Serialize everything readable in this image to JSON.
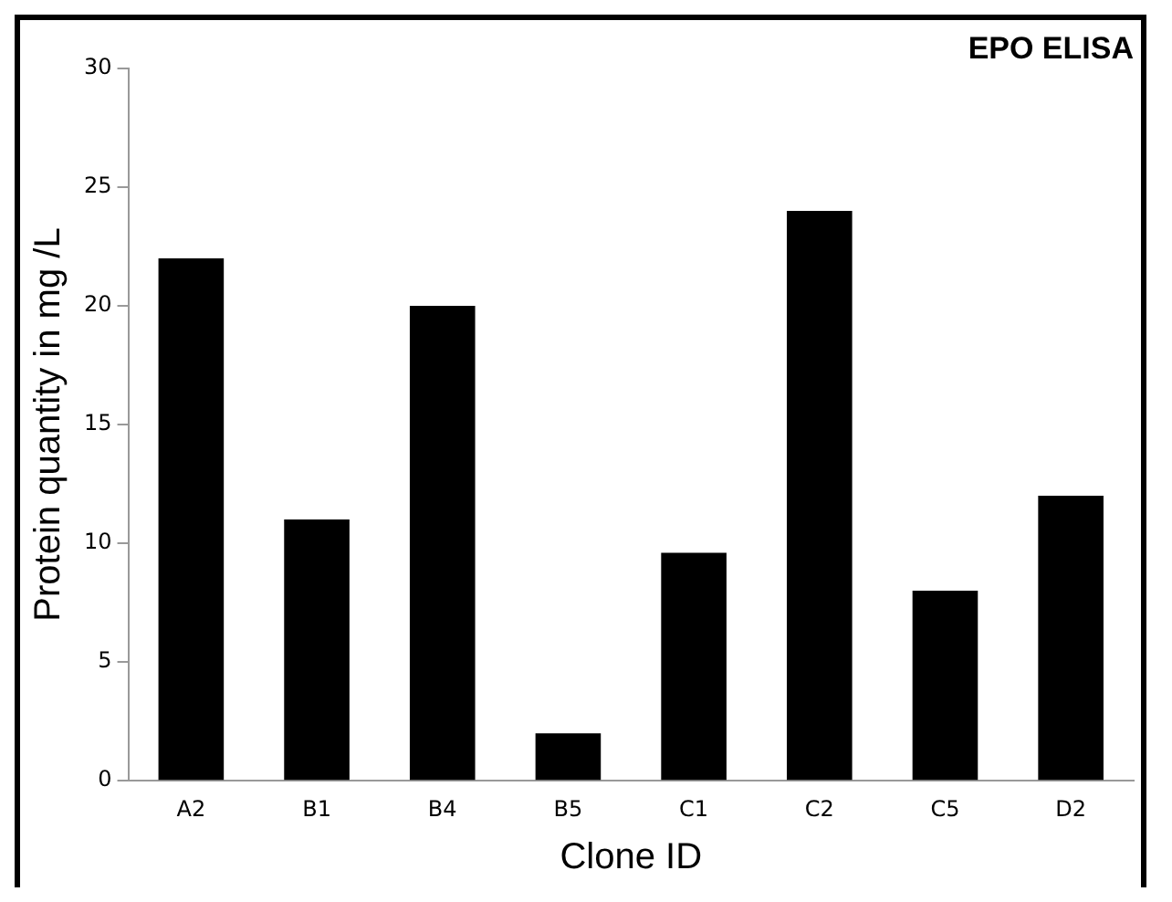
{
  "chart_data": {
    "type": "bar",
    "title": "EPO ELISA",
    "xlabel": "Clone ID",
    "ylabel": "Protein quantity in mg /L",
    "categories": [
      "A2",
      "B1",
      "B4",
      "B5",
      "C1",
      "C2",
      "C5",
      "D2"
    ],
    "values": [
      22,
      11,
      20,
      2,
      9.6,
      24,
      8,
      12
    ],
    "color": "#000000",
    "ylim": [
      0,
      30
    ],
    "yticks": [
      0,
      5,
      10,
      15,
      20,
      25,
      30
    ],
    "grid": false,
    "legend": false
  }
}
